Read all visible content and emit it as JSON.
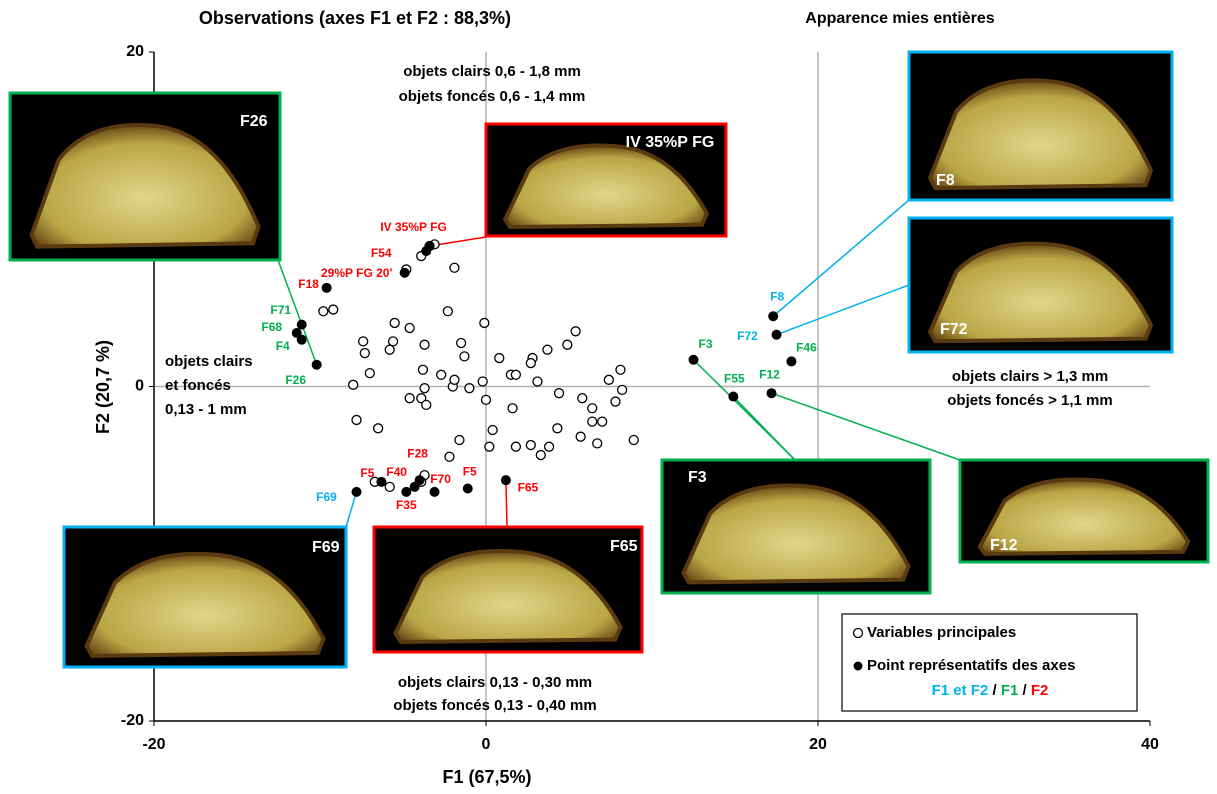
{
  "chart_data": {
    "type": "scatter",
    "title": "Observations (axes F1 et F2 : 88,3%)",
    "subtitle": "Apparence mies entières",
    "x_label": "F1 (67,5%)",
    "y_label": "F2 (20,7 %)",
    "xlim": [
      -20,
      40
    ],
    "ylim": [
      -20,
      20
    ],
    "xticks": [
      -20,
      0,
      20,
      40
    ],
    "yticks": [
      -20,
      0,
      20
    ],
    "grid": true,
    "legend_position": "lower right",
    "annotations": [
      "objets clairs 0,6 - 1,8 mm",
      "objets foncés 0,6 - 1,4 mm",
      "objets clairs",
      "et foncés",
      "0,13 - 1 mm",
      "objets clairs > 1,3 mm",
      "objets foncés > 1,1 mm",
      "objets clairs 0,13 - 0,30 mm",
      "objets foncés 0,13 - 0,40 mm"
    ],
    "legend_note": [
      {
        "text": "F1 et F2",
        "color": "#00b0f0"
      },
      {
        "text": " / ",
        "color": "#000000"
      },
      {
        "text": "F1",
        "color": "#00b050"
      },
      {
        "text": " / ",
        "color": "#000000"
      },
      {
        "text": "F2",
        "color": "#ff0000"
      }
    ],
    "series": [
      {
        "name": "Variables principales",
        "color": "#000000",
        "marker": "open",
        "x": [
          -3.1,
          -3.4,
          -3.9,
          -4.8,
          -1.9,
          -9.2,
          -9.8,
          -5.5,
          -0.1,
          -4.6,
          -2.3,
          -7.4,
          -7.3,
          -5.6,
          -5.8,
          -1.5,
          -1.3,
          -3.7,
          0.8,
          2.8,
          2.7,
          3.7,
          5.4,
          4.9,
          1.5,
          1.8,
          3.1,
          -8.0,
          -7.0,
          -3.8,
          -3.7,
          -2.7,
          -2.0,
          -1.0,
          -0.2,
          -4.6,
          -3.9,
          -3.6,
          0.0,
          4.4,
          5.8,
          6.4,
          7.4,
          8.1,
          8.2,
          7.8,
          7.0,
          6.4,
          1.6,
          -7.8,
          -6.5,
          0.4,
          0.2,
          -1.6,
          -2.2,
          1.8,
          2.7,
          3.3,
          3.8,
          4.3,
          5.7,
          6.7,
          8.9,
          -3.7,
          -5.8,
          -6.7,
          -3.9,
          -1.9
        ],
        "y": [
          8.5,
          8.4,
          7.8,
          7.0,
          7.1,
          4.6,
          4.5,
          3.8,
          3.8,
          3.5,
          4.5,
          2.7,
          2.0,
          2.7,
          2.2,
          2.6,
          1.8,
          2.5,
          1.7,
          1.7,
          1.4,
          2.2,
          3.3,
          2.5,
          0.7,
          0.7,
          0.3,
          0.1,
          0.8,
          1.0,
          -0.1,
          0.7,
          0.0,
          -0.1,
          0.3,
          -0.7,
          -0.7,
          -1.1,
          -0.8,
          -0.4,
          -0.7,
          -1.3,
          0.4,
          1.0,
          -0.2,
          -0.9,
          -2.1,
          -2.1,
          -1.3,
          -2.0,
          -2.5,
          -2.6,
          -3.6,
          -3.2,
          -4.2,
          -3.6,
          -3.5,
          -4.1,
          -3.6,
          -2.5,
          -3.0,
          -3.4,
          -3.2,
          -5.3,
          -6.0,
          -5.7,
          -5.7,
          0.4
        ]
      },
      {
        "name": "Point représentatifs des axes",
        "color": "#000000",
        "marker": "filled",
        "x": [
          -11.1,
          -11.4,
          -11.1,
          -10.2,
          -9.6,
          -4.9,
          -3.6,
          -3.4,
          12.5,
          14.9,
          17.2,
          18.4,
          17.3,
          17.5,
          -7.8,
          -6.3,
          -4.3,
          -4.0,
          -4.8,
          -3.1,
          -1.1,
          1.2
        ],
        "y": [
          3.7,
          3.2,
          2.8,
          1.3,
          5.9,
          6.8,
          8.1,
          8.4,
          1.6,
          -0.6,
          -0.4,
          1.5,
          4.2,
          3.1,
          -6.3,
          -5.7,
          -6.0,
          -5.6,
          -6.3,
          -6.3,
          -6.1,
          -5.6
        ],
        "labels": [
          "F71",
          "F68",
          "F4",
          "F26",
          "F18",
          "29%P FG 20'",
          "F54",
          "IV 35%P FG",
          "F3",
          "F55",
          "F12",
          "F46",
          "F8",
          "F72",
          "F69",
          "F5",
          "F40",
          "F28",
          "F35",
          "F70",
          "F5",
          "F65"
        ],
        "label_colors": [
          "#00b050",
          "#00b050",
          "#00b050",
          "#00b050",
          "#ff0000",
          "#ff0000",
          "#ff0000",
          "#ff0000",
          "#00b050",
          "#00b050",
          "#00b050",
          "#00b050",
          "#00b0f0",
          "#00b0f0",
          "#00b0f0",
          "#ff0000",
          "#ff0000",
          "#ff0000",
          "#ff0000",
          "#ff0000",
          "#ff0000",
          "#ff0000"
        ]
      }
    ],
    "insets": [
      {
        "label": "F26",
        "color": "#00b050"
      },
      {
        "label": "IV 35%P FG",
        "color": "#ff0000"
      },
      {
        "label": "F8",
        "color": "#00b0f0"
      },
      {
        "label": "F72",
        "color": "#00b0f0"
      },
      {
        "label": "F3",
        "color": "#00b050"
      },
      {
        "label": "F12",
        "color": "#00b050"
      },
      {
        "label": "F69",
        "color": "#00b0f0"
      },
      {
        "label": "F65",
        "color": "#ff0000"
      }
    ]
  }
}
